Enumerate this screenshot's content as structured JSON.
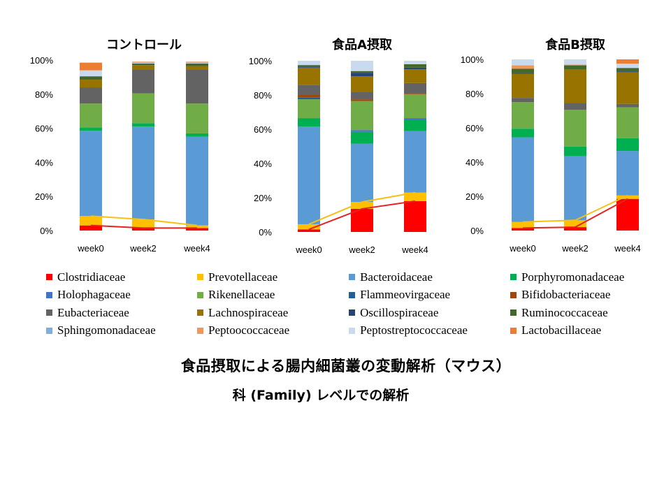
{
  "chart_data": [
    {
      "type": "bar",
      "stacked": true,
      "title": "コントロール",
      "categories": [
        "week0",
        "week2",
        "week4"
      ],
      "ylim": [
        0,
        100
      ],
      "yticks": [
        "0%",
        "20%",
        "40%",
        "60%",
        "80%",
        "100%"
      ],
      "series": [
        {
          "name": "Clostridiaceae",
          "values": [
            3,
            1.5,
            1.5
          ]
        },
        {
          "name": "Prevotellaceae",
          "values": [
            5.5,
            5,
            1.5
          ]
        },
        {
          "name": "Bacteroidaceae",
          "values": [
            50,
            54.5,
            52
          ]
        },
        {
          "name": "Porphyromonadaceae",
          "values": [
            2,
            2,
            2
          ]
        },
        {
          "name": "Holophagaceae",
          "values": [
            0,
            0,
            0
          ]
        },
        {
          "name": "Rikenellaceae",
          "values": [
            14,
            17.5,
            17.5
          ]
        },
        {
          "name": "Flammeovirgaceae",
          "values": [
            0,
            0,
            0
          ]
        },
        {
          "name": "Bifidobacteriaceae",
          "values": [
            0,
            0,
            0
          ]
        },
        {
          "name": "Eubacteriaceae",
          "values": [
            9.5,
            14,
            20
          ]
        },
        {
          "name": "Lachnospiraceae",
          "values": [
            4.5,
            2.5,
            2
          ]
        },
        {
          "name": "Oscillospiraceae",
          "values": [
            0,
            0,
            0
          ]
        },
        {
          "name": "Ruminococcaceae",
          "values": [
            2,
            1,
            1.5
          ]
        },
        {
          "name": "Sphingomonadaceae",
          "values": [
            0,
            0,
            0
          ]
        },
        {
          "name": "Peptoococcaceae",
          "values": [
            0,
            0,
            0
          ]
        },
        {
          "name": "Peptostreptococcaceae",
          "values": [
            3.5,
            0.5,
            0.5
          ]
        },
        {
          "name": "Lactobacillaceae",
          "values": [
            4.5,
            0.5,
            0.5
          ]
        }
      ],
      "line_series": [
        {
          "label": "Clostridiaceae",
          "color": "#e8221e",
          "values": [
            3,
            1.5,
            1.5
          ]
        },
        {
          "label": "Clostridiaceae + Prevotellaceae",
          "color": "#f7c014",
          "values": [
            8.5,
            6.5,
            3
          ]
        }
      ]
    },
    {
      "type": "bar",
      "stacked": true,
      "title": "食品A摂取",
      "categories": [
        "week0",
        "week2",
        "week4"
      ],
      "ylim": [
        0,
        100
      ],
      "yticks": [
        "0%",
        "20%",
        "40%",
        "60%",
        "80%",
        "100%"
      ],
      "series": [
        {
          "name": "Clostridiaceae",
          "values": [
            1.5,
            13.5,
            18
          ]
        },
        {
          "name": "Prevotellaceae",
          "values": [
            3,
            4,
            5
          ]
        },
        {
          "name": "Bacteroidaceae",
          "values": [
            57,
            34,
            36
          ]
        },
        {
          "name": "Porphyromonadaceae",
          "values": [
            5,
            7,
            6.5
          ]
        },
        {
          "name": "Holophagaceae",
          "values": [
            0,
            1,
            1
          ]
        },
        {
          "name": "Rikenellaceae",
          "values": [
            11,
            17,
            14
          ]
        },
        {
          "name": "Flammeovirgaceae",
          "values": [
            1,
            0,
            0
          ]
        },
        {
          "name": "Bifidobacteriaceae",
          "values": [
            1.5,
            1,
            0.5
          ]
        },
        {
          "name": "Eubacteriaceae",
          "values": [
            6,
            4.5,
            6
          ]
        },
        {
          "name": "Lachnospiraceae",
          "values": [
            10,
            9,
            8
          ]
        },
        {
          "name": "Oscillospiraceae",
          "values": [
            0.5,
            2,
            1
          ]
        },
        {
          "name": "Ruminococcaceae",
          "values": [
            1,
            1,
            2
          ]
        },
        {
          "name": "Sphingomonadaceae",
          "values": [
            0,
            0,
            0
          ]
        },
        {
          "name": "Peptoococcaceae",
          "values": [
            0,
            0,
            0
          ]
        },
        {
          "name": "Peptostreptococcaceae",
          "values": [
            2.5,
            6,
            2
          ]
        },
        {
          "name": "Lactobacillaceae",
          "values": [
            0,
            0,
            0
          ]
        }
      ],
      "line_series": [
        {
          "label": "Clostridiaceae",
          "color": "#e8221e",
          "values": [
            1.5,
            13.5,
            18
          ]
        },
        {
          "label": "Clostridiaceae + Prevotellaceae",
          "color": "#f7c014",
          "values": [
            4.5,
            17.5,
            23
          ]
        }
      ]
    },
    {
      "type": "bar",
      "stacked": true,
      "title": "食品B摂取",
      "categories": [
        "week0",
        "week2",
        "week4"
      ],
      "ylim": [
        0,
        100
      ],
      "yticks": [
        "0%",
        "20%",
        "40%",
        "60%",
        "80%",
        "100%"
      ],
      "series": [
        {
          "name": "Clostridiaceae",
          "values": [
            1.5,
            2,
            18.5
          ]
        },
        {
          "name": "Prevotellaceae",
          "values": [
            3.5,
            4,
            2
          ]
        },
        {
          "name": "Bacteroidaceae",
          "values": [
            49.5,
            37.5,
            26
          ]
        },
        {
          "name": "Porphyromonadaceae",
          "values": [
            5,
            5.5,
            7.5
          ]
        },
        {
          "name": "Holophagaceae",
          "values": [
            0,
            0,
            0
          ]
        },
        {
          "name": "Rikenellaceae",
          "values": [
            15.5,
            21.5,
            18
          ]
        },
        {
          "name": "Flammeovirgaceae",
          "values": [
            0,
            0,
            0
          ]
        },
        {
          "name": "Bifidobacteriaceae",
          "values": [
            0,
            0,
            0
          ]
        },
        {
          "name": "Eubacteriaceae",
          "values": [
            2.5,
            4,
            2
          ]
        },
        {
          "name": "Lachnospiraceae",
          "values": [
            14,
            19.5,
            18.5
          ]
        },
        {
          "name": "Oscillospiraceae",
          "values": [
            0.5,
            0,
            0.5
          ]
        },
        {
          "name": "Ruminococcaceae",
          "values": [
            2.5,
            2.5,
            2
          ]
        },
        {
          "name": "Sphingomonadaceae",
          "values": [
            0,
            0,
            0
          ]
        },
        {
          "name": "Peptoococcaceae",
          "values": [
            2,
            0.5,
            0
          ]
        },
        {
          "name": "Peptostreptococcaceae",
          "values": [
            3.5,
            3,
            2.5
          ]
        },
        {
          "name": "Lactobacillaceae",
          "values": [
            0,
            0,
            2.5
          ]
        }
      ],
      "line_series": [
        {
          "label": "Clostridiaceae",
          "color": "#e8221e",
          "values": [
            1.5,
            2,
            18.5
          ]
        },
        {
          "label": "Clostridiaceae + Prevotellaceae",
          "color": "#f7c014",
          "values": [
            5,
            6,
            20.5
          ]
        }
      ]
    }
  ],
  "legend": {
    "rows": [
      [
        "Clostridiaceae",
        "Prevotellaceae",
        "Bacteroidaceae",
        "Porphyromonadaceae"
      ],
      [
        "Holophagaceae",
        "Rikenellaceae",
        "Flammeovirgaceae",
        "Bifidobacteriaceae"
      ],
      [
        "Eubacteriaceae",
        "Lachnospiraceae",
        "Oscillospiraceae",
        "Ruminococcaceae"
      ],
      [
        "Sphingomonadaceae",
        "Peptoococcaceae",
        "Peptostreptococcaceae",
        "Lactobacillaceae"
      ]
    ]
  },
  "colors": {
    "Clostridiaceae": "#fe0000",
    "Prevotellaceae": "#ffc000",
    "Bacteroidaceae": "#5b9bd5",
    "Porphyromonadaceae": "#00b050",
    "Holophagaceae": "#4472c4",
    "Rikenellaceae": "#70ad47",
    "Flammeovirgaceae": "#255e91",
    "Bifidobacteriaceae": "#9e480e",
    "Eubacteriaceae": "#636363",
    "Lachnospiraceae": "#997300",
    "Oscillospiraceae": "#264478",
    "Ruminococcaceae": "#43682b",
    "Sphingomonadaceae": "#7cafdd",
    "Peptoococcaceae": "#f1975a",
    "Peptostreptococcaceae": "#c9daee",
    "Lactobacillaceae": "#ed7d31"
  },
  "captions": {
    "main": "食品摂取による腸内細菌叢の変動解析（マウス）",
    "sub": "科 (Family) レベルでの解析"
  }
}
